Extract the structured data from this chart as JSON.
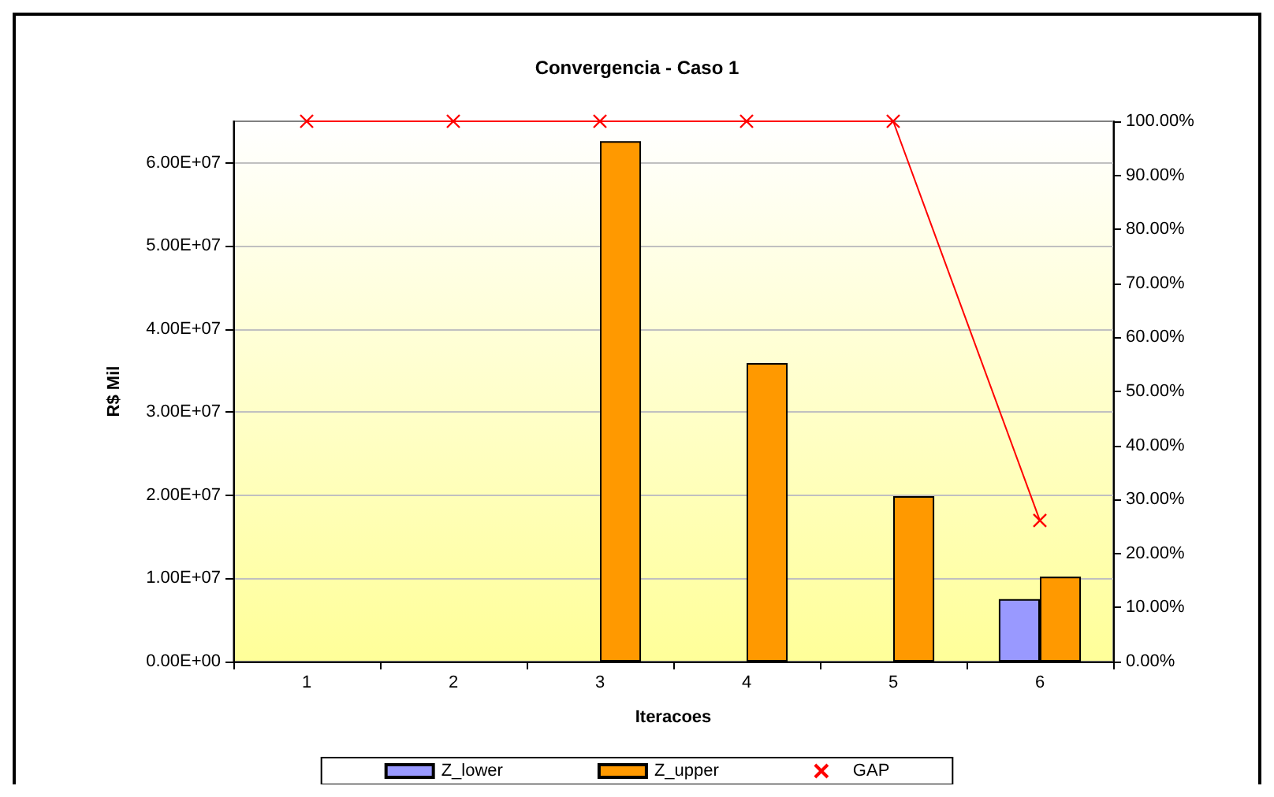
{
  "chart_data": {
    "type": "bar",
    "title": "Convergencia - Caso 1",
    "xlabel": "Iteracoes",
    "ylabel": "R$ Mil",
    "categories": [
      "1",
      "2",
      "3",
      "4",
      "5",
      "6"
    ],
    "series": [
      {
        "name": "Z_lower",
        "color": "#9999ff",
        "values": [
          null,
          null,
          null,
          null,
          null,
          7500000
        ]
      },
      {
        "name": "Z_upper",
        "color": "#ff9900",
        "values": [
          null,
          null,
          62600000,
          35900000,
          19900000,
          10200000
        ]
      },
      {
        "name": "GAP",
        "type": "line",
        "axis": "y2",
        "color": "#ff0000",
        "marker": "cross",
        "values": [
          100,
          100,
          100,
          100,
          100,
          26.1
        ]
      }
    ],
    "ylim": [
      0,
      65000000
    ],
    "yticks": [
      {
        "value": 0,
        "label": "0.00E+00"
      },
      {
        "value": 10000000,
        "label": "1.00E+07"
      },
      {
        "value": 20000000,
        "label": "2.00E+07"
      },
      {
        "value": 30000000,
        "label": "3.00E+07"
      },
      {
        "value": 40000000,
        "label": "4.00E+07"
      },
      {
        "value": 50000000,
        "label": "5.00E+07"
      },
      {
        "value": 60000000,
        "label": "6.00E+07"
      }
    ],
    "y2lim": [
      0,
      100
    ],
    "y2ticks": [
      {
        "value": 0,
        "label": "0.00%"
      },
      {
        "value": 10,
        "label": "10.00%"
      },
      {
        "value": 20,
        "label": "20.00%"
      },
      {
        "value": 30,
        "label": "30.00%"
      },
      {
        "value": 40,
        "label": "40.00%"
      },
      {
        "value": 50,
        "label": "50.00%"
      },
      {
        "value": 60,
        "label": "60.00%"
      },
      {
        "value": 70,
        "label": "70.00%"
      },
      {
        "value": 80,
        "label": "80.00%"
      },
      {
        "value": 90,
        "label": "90.00%"
      },
      {
        "value": 100,
        "label": "100.00%"
      }
    ],
    "grid": "y",
    "legend": "bottom"
  }
}
